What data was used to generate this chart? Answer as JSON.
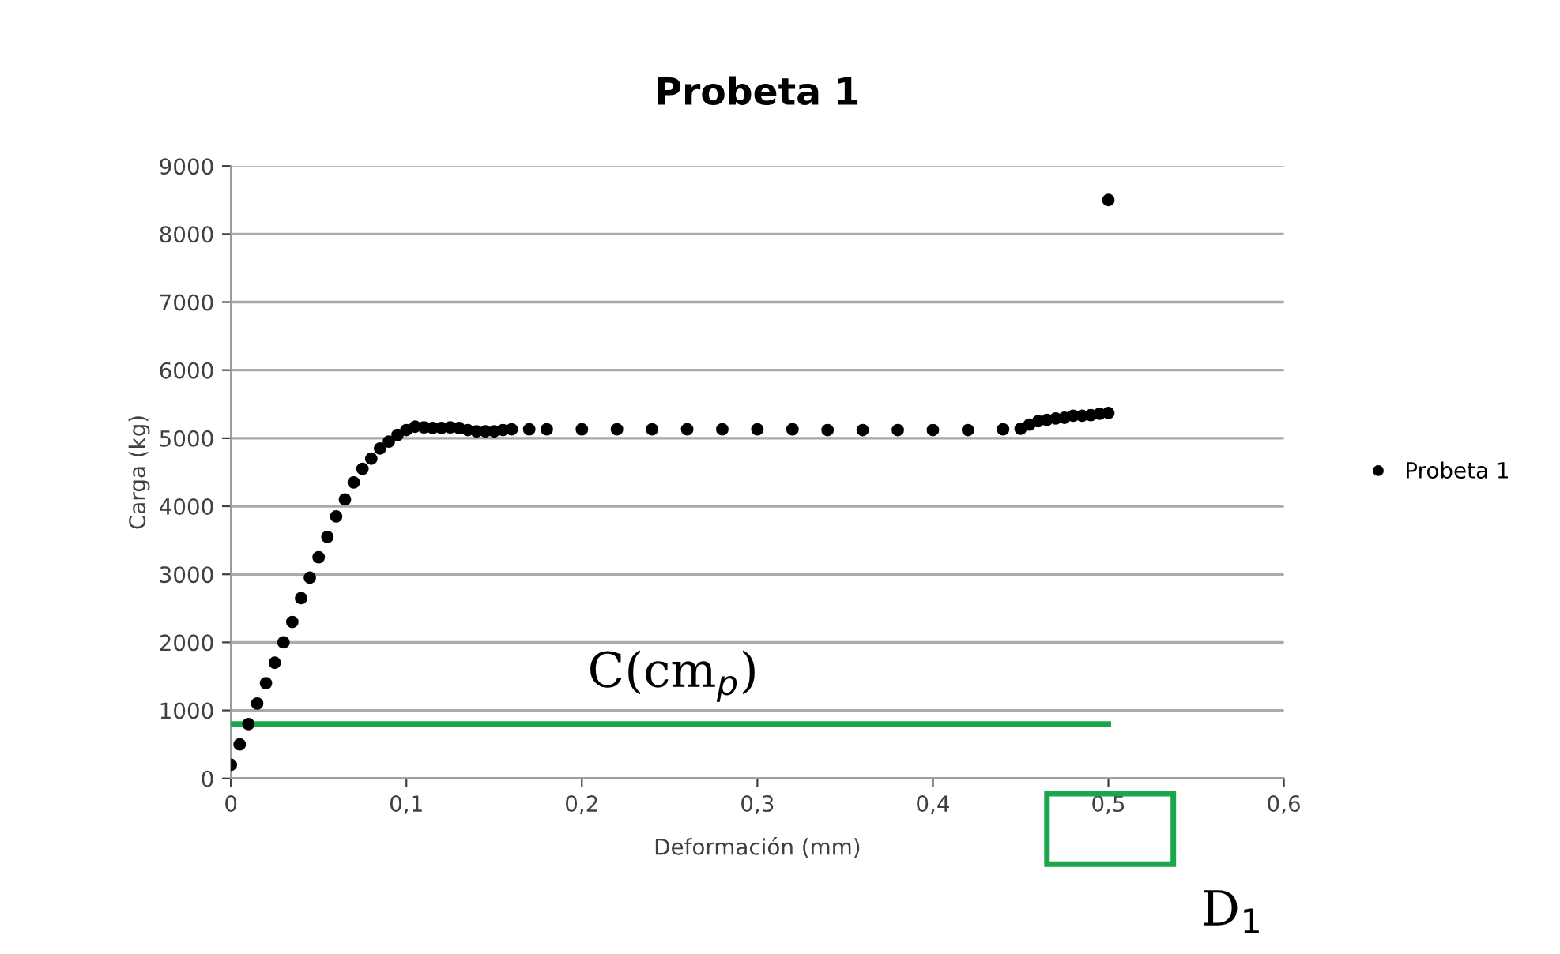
{
  "chart_data": {
    "type": "scatter",
    "title": "Probeta 1",
    "xlabel": "Deformación (mm)",
    "ylabel": "Carga (kg)",
    "series": [
      {
        "name": "Probeta 1",
        "color": "#000000",
        "x": [
          0.0,
          0.005,
          0.01,
          0.015,
          0.02,
          0.025,
          0.03,
          0.035,
          0.04,
          0.045,
          0.05,
          0.055,
          0.06,
          0.065,
          0.07,
          0.075,
          0.08,
          0.085,
          0.09,
          0.095,
          0.1,
          0.105,
          0.11,
          0.115,
          0.12,
          0.125,
          0.13,
          0.135,
          0.14,
          0.145,
          0.15,
          0.155,
          0.16,
          0.17,
          0.18,
          0.2,
          0.22,
          0.24,
          0.26,
          0.28,
          0.3,
          0.32,
          0.34,
          0.36,
          0.38,
          0.4,
          0.42,
          0.44,
          0.45,
          0.455,
          0.46,
          0.465,
          0.47,
          0.475,
          0.48,
          0.485,
          0.49,
          0.495,
          0.5,
          0.5
        ],
        "values": [
          200,
          500,
          800,
          1100,
          1400,
          1700,
          2000,
          2300,
          2650,
          2950,
          3250,
          3550,
          3850,
          4100,
          4350,
          4550,
          4700,
          4850,
          4950,
          5050,
          5120,
          5170,
          5160,
          5150,
          5150,
          5160,
          5150,
          5120,
          5100,
          5100,
          5100,
          5120,
          5130,
          5130,
          5130,
          5130,
          5130,
          5130,
          5130,
          5130,
          5130,
          5130,
          5120,
          5120,
          5120,
          5120,
          5120,
          5130,
          5140,
          5200,
          5250,
          5270,
          5290,
          5300,
          5330,
          5330,
          5340,
          5360,
          5370,
          8500
        ]
      },
      {
        "type": "line",
        "marker": "none",
        "color": "#1aa64a",
        "x": [
          0,
          0.5
        ],
        "values": [
          800,
          800
        ]
      }
    ],
    "xlim": [
      0,
      0.6
    ],
    "xticks": [
      {
        "value": 0,
        "label": "0"
      },
      {
        "value": 0.1,
        "label": "0,1"
      },
      {
        "value": 0.2,
        "label": "0,2"
      },
      {
        "value": 0.3,
        "label": "0,3"
      },
      {
        "value": 0.4,
        "label": "0,4"
      },
      {
        "value": 0.5,
        "label": "0,5"
      },
      {
        "value": 0.6,
        "label": "0,6"
      }
    ],
    "ylim": [
      0,
      9000
    ],
    "yticks": [
      0,
      1000,
      2000,
      3000,
      4000,
      5000,
      6000,
      7000,
      8000,
      9000
    ],
    "grid": "y",
    "legend": "right",
    "marker": "circle",
    "annotations": [
      "C(cm$_{p}$)",
      "D$_{1}$"
    ]
  }
}
